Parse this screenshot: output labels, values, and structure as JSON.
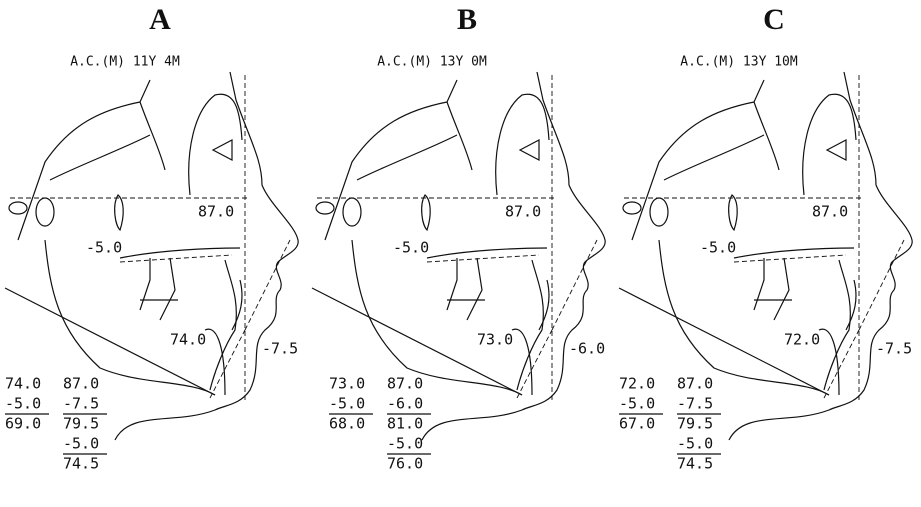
{
  "panels": [
    {
      "letter": "A",
      "caption": "A.C.(M) 11Y 4M",
      "labels": {
        "upper": "87.0",
        "middle": "-5.0",
        "lower": "74.0",
        "side": "-7.5"
      },
      "calc": {
        "left": [
          "74.0",
          "-5.0",
          "69.0"
        ],
        "right": [
          "87.0",
          "-7.5",
          "79.5",
          "-5.0",
          "74.5"
        ]
      }
    },
    {
      "letter": "B",
      "caption": "A.C.(M) 13Y 0M",
      "labels": {
        "upper": "87.0",
        "middle": "-5.0",
        "lower": "73.0",
        "side": "-6.0"
      },
      "calc": {
        "left": [
          "73.0",
          "-5.0",
          "68.0"
        ],
        "right": [
          "87.0",
          "-6.0",
          "81.0",
          "-5.0",
          "76.0"
        ]
      }
    },
    {
      "letter": "C",
      "caption": "A.C.(M) 13Y 10M",
      "labels": {
        "upper": "87.0",
        "middle": "-5.0",
        "lower": "72.0",
        "side": "-7.5"
      },
      "calc": {
        "left": [
          "72.0",
          "-5.0",
          "67.0"
        ],
        "right": [
          "87.0",
          "-7.5",
          "79.5",
          "-5.0",
          "74.5"
        ]
      }
    }
  ]
}
